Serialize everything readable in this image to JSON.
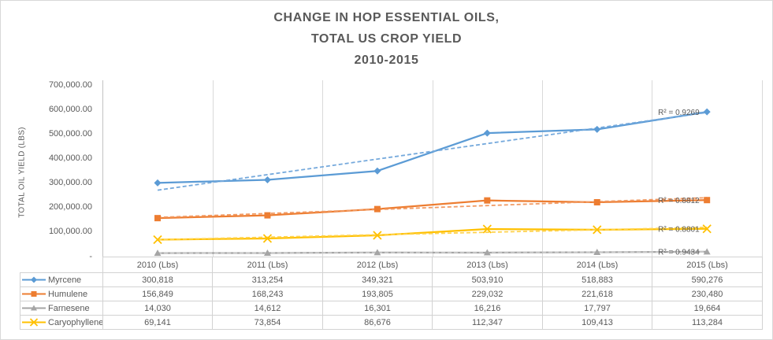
{
  "title": {
    "line1": "CHANGE IN HOP ESSENTIAL OILS,",
    "line2": "TOTAL US CROP YIELD",
    "line3": "2010-2015"
  },
  "y_axis": {
    "title": "TOTAL OIL YIELD (LBS)",
    "tick_labels": [
      "700,000.00",
      "600,000.00",
      "500,000.00",
      "400,000.00",
      "300,000.00",
      "200,000.00",
      "100,000.00",
      "-"
    ]
  },
  "colors": {
    "text": "#595959",
    "gridline": "#d9d9d9",
    "axis_line": "#c3c3c3",
    "table_border": "#d2d2d2",
    "background": "#ffffff"
  },
  "chart_data": {
    "type": "line",
    "title": "CHANGE IN HOP ESSENTIAL OILS, TOTAL US CROP YIELD 2010-2015",
    "xlabel": "",
    "ylabel": "TOTAL OIL YIELD (LBS)",
    "ylim": [
      0,
      700000
    ],
    "grid": "vertical-only",
    "legend_position": "data-table-left",
    "categories": [
      "2010 (Lbs)",
      "2011 (Lbs)",
      "2012 (Lbs)",
      "2013 (Lbs)",
      "2014 (Lbs)",
      "2015 (Lbs)"
    ],
    "series": [
      {
        "name": "Myrcene",
        "marker": "diamond",
        "color": "#5b9bd5",
        "trend_color": "#75a9dc",
        "values": [
          300818,
          313254,
          349321,
          503910,
          518883,
          590276
        ],
        "values_formatted": [
          "300,818",
          "313,254",
          "349,321",
          "503,910",
          "518,883",
          "590,276"
        ],
        "trendline": "linear-dashed",
        "r2": 0.9269,
        "r2_label": "R² = 0.9269"
      },
      {
        "name": "Humulene",
        "marker": "square",
        "color": "#ed7d31",
        "trend_color": "#f19a63",
        "values": [
          156849,
          168243,
          193805,
          229032,
          221618,
          230480
        ],
        "values_formatted": [
          "156,849",
          "168,243",
          "193,805",
          "229,032",
          "221,618",
          "230,480"
        ],
        "trendline": "linear-dashed",
        "r2": 0.8812,
        "r2_label": "R² = 0.8812"
      },
      {
        "name": "Farnesene",
        "marker": "triangle",
        "color": "#a5a5a5",
        "trend_color": "#c9c9c9",
        "values": [
          14030,
          14612,
          16301,
          16216,
          17797,
          19664
        ],
        "values_formatted": [
          "14,030",
          "14,612",
          "16,301",
          "16,216",
          "17,797",
          "19,664"
        ],
        "trendline": "linear-dashed",
        "r2": 0.9434,
        "r2_label": "R² = 0.9434"
      },
      {
        "name": "Caryophyllene",
        "marker": "x",
        "color": "#ffc000",
        "trend_color": "#ffd34d",
        "values": [
          69141,
          73854,
          86676,
          112347,
          109413,
          113284
        ],
        "values_formatted": [
          "69,141",
          "73,854",
          "86,676",
          "112,347",
          "109,413",
          "113,284"
        ],
        "trendline": "linear-dashed",
        "r2": 0.8801,
        "r2_label": "R² = 0.8801"
      }
    ]
  }
}
